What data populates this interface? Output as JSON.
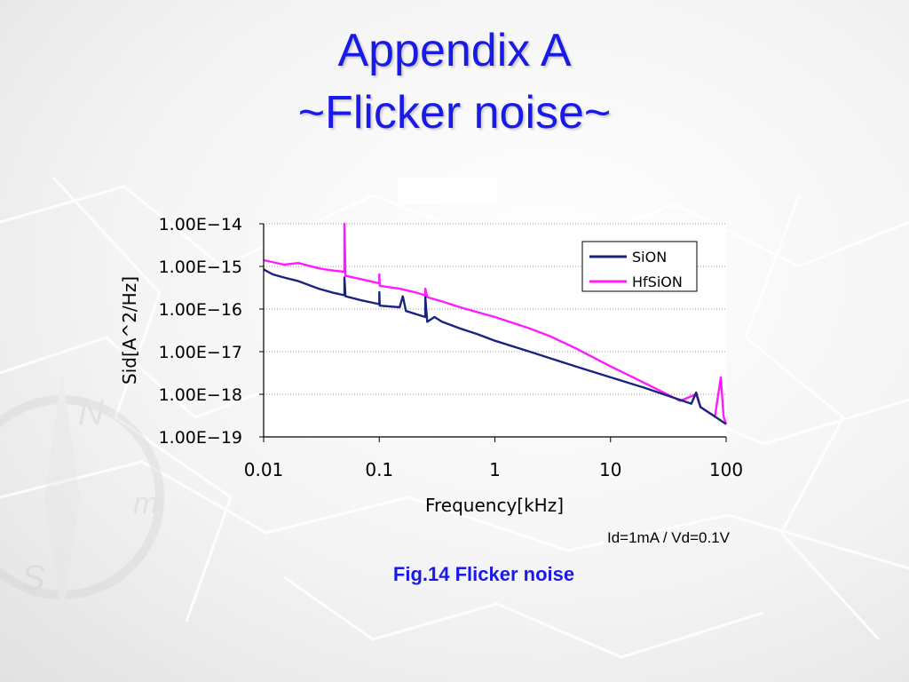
{
  "slide": {
    "title_line1": "Appendix A",
    "title_line2": "~Flicker noise~",
    "condition_label": "Id=1mA / Vd=0.1V",
    "figure_caption": "Fig.14 Flicker noise",
    "title_color": "#1a1ae6"
  },
  "chart_data": {
    "type": "line",
    "title": "",
    "xlabel": "Frequency[kHz]",
    "ylabel": "Sid[A^2/Hz]",
    "x_scale": "log",
    "y_scale": "log",
    "xlim": [
      0.01,
      100
    ],
    "ylim": [
      1e-19,
      1e-14
    ],
    "x_ticks": [
      0.01,
      0.1,
      1,
      10,
      100
    ],
    "x_tick_labels": [
      "0.01",
      "0.1",
      "1",
      "10",
      "100"
    ],
    "y_ticks": [
      1e-14,
      1e-15,
      1e-16,
      1e-17,
      1e-18,
      1e-19
    ],
    "y_tick_labels": [
      "1.00E−14",
      "1.00E−15",
      "1.00E−16",
      "1.00E−17",
      "1.00E−18",
      "1.00E−19"
    ],
    "grid": "horizontal dotted",
    "legend": "top-right",
    "series": [
      {
        "name": "SiON",
        "color": "#1a237e",
        "points": [
          [
            0.01,
            8.5e-16
          ],
          [
            0.012,
            6.5e-16
          ],
          [
            0.015,
            5.5e-16
          ],
          [
            0.02,
            4.5e-16
          ],
          [
            0.03,
            3e-16
          ],
          [
            0.04,
            2.4e-16
          ],
          [
            0.05,
            2.1e-16
          ],
          [
            0.05,
            5.5e-16
          ],
          [
            0.051,
            2e-16
          ],
          [
            0.07,
            1.6e-16
          ],
          [
            0.1,
            1.3e-16
          ],
          [
            0.1,
            2.5e-16
          ],
          [
            0.101,
            1.2e-16
          ],
          [
            0.15,
            1.1e-16
          ],
          [
            0.16,
            2e-16
          ],
          [
            0.17,
            9e-17
          ],
          [
            0.25,
            6.5e-17
          ],
          [
            0.25,
            1.9e-16
          ],
          [
            0.26,
            5e-17
          ],
          [
            0.3,
            6.5e-17
          ],
          [
            0.35,
            5e-17
          ],
          [
            0.5,
            3.5e-17
          ],
          [
            0.7,
            2.6e-17
          ],
          [
            1,
            1.8e-17
          ],
          [
            2,
            1e-17
          ],
          [
            3,
            7e-18
          ],
          [
            5,
            4.5e-18
          ],
          [
            10,
            2.5e-18
          ],
          [
            20,
            1.4e-18
          ],
          [
            50,
            6e-19
          ],
          [
            55,
            1.1e-18
          ],
          [
            60,
            5e-19
          ],
          [
            80,
            3e-19
          ],
          [
            100,
            2e-19
          ]
        ]
      },
      {
        "name": "HfSiON",
        "color": "#ff1aff",
        "points": [
          [
            0.01,
            1.4e-15
          ],
          [
            0.015,
            1.1e-15
          ],
          [
            0.02,
            1.2e-15
          ],
          [
            0.03,
            9e-16
          ],
          [
            0.04,
            8e-16
          ],
          [
            0.05,
            7.5e-16
          ],
          [
            0.05,
            1e-14
          ],
          [
            0.051,
            6e-16
          ],
          [
            0.07,
            5e-16
          ],
          [
            0.1,
            4e-16
          ],
          [
            0.1,
            6.5e-16
          ],
          [
            0.101,
            3.5e-16
          ],
          [
            0.15,
            3e-16
          ],
          [
            0.2,
            2.5e-16
          ],
          [
            0.25,
            2.1e-16
          ],
          [
            0.25,
            3e-16
          ],
          [
            0.26,
            1.9e-16
          ],
          [
            0.35,
            1.5e-16
          ],
          [
            0.5,
            1.1e-16
          ],
          [
            0.7,
            8.5e-17
          ],
          [
            1,
            6.5e-17
          ],
          [
            2,
            3.5e-17
          ],
          [
            3,
            2.3e-17
          ],
          [
            5,
            1.2e-17
          ],
          [
            10,
            4.5e-18
          ],
          [
            20,
            1.8e-18
          ],
          [
            40,
            7e-19
          ],
          [
            55,
            1e-18
          ],
          [
            60,
            5e-19
          ],
          [
            80,
            3e-19
          ],
          [
            90,
            2.5e-18
          ],
          [
            95,
            3e-19
          ],
          [
            100,
            2e-19
          ]
        ]
      }
    ],
    "annotations": []
  }
}
